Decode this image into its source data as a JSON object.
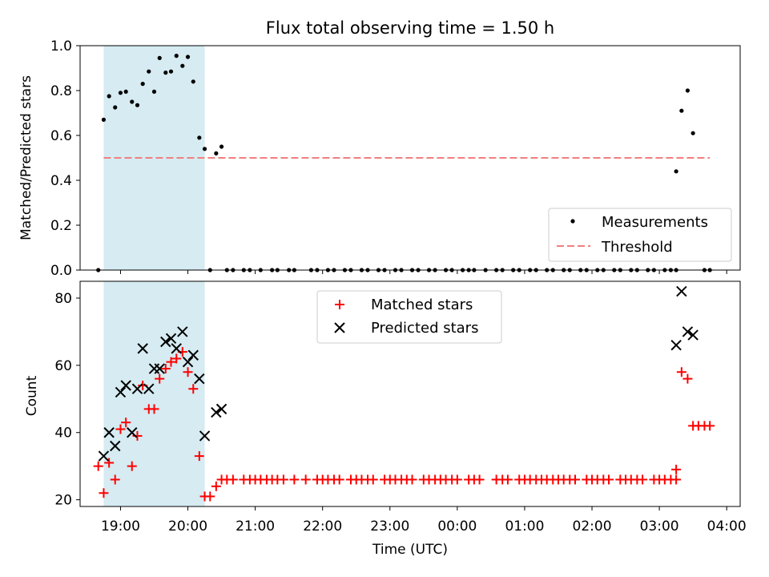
{
  "chart_data": [
    {
      "type": "scatter",
      "title": "Flux total observing time = 1.50 h",
      "xlabel": "",
      "ylabel": "Matched/Predicted stars",
      "xlim": [
        18.4,
        28.2
      ],
      "ylim": [
        0.0,
        1.0
      ],
      "yticks": [
        0.0,
        0.2,
        0.4,
        0.6,
        0.8,
        1.0
      ],
      "ytick_labels": [
        "0.0",
        "0.2",
        "0.4",
        "0.6",
        "0.8",
        "1.0"
      ],
      "legend_location": "lower right",
      "highlight_span": [
        18.75,
        20.25
      ],
      "threshold": {
        "name": "Threshold",
        "value": 0.5,
        "x_range": [
          18.75,
          27.75
        ],
        "color": "#f08080"
      },
      "series": [
        {
          "name": "Measurements",
          "color": "#000000",
          "marker": "dot",
          "x": [
            18.67,
            18.75,
            18.83,
            18.92,
            19.0,
            19.08,
            19.17,
            19.25,
            19.33,
            19.42,
            19.5,
            19.58,
            19.67,
            19.75,
            19.83,
            19.92,
            20.0,
            20.08,
            20.17,
            20.25,
            20.42,
            20.5,
            20.33,
            20.58,
            20.67,
            20.83,
            20.92,
            21.08,
            21.25,
            21.33,
            21.5,
            21.58,
            21.83,
            21.92,
            22.08,
            22.17,
            22.33,
            22.42,
            22.58,
            22.67,
            22.83,
            22.92,
            23.08,
            23.17,
            23.33,
            23.42,
            23.58,
            23.67,
            23.83,
            23.92,
            24.08,
            24.17,
            24.25,
            24.42,
            24.58,
            24.67,
            24.83,
            24.92,
            25.08,
            25.17,
            25.33,
            25.42,
            25.58,
            25.67,
            25.83,
            25.92,
            26.08,
            26.17,
            26.33,
            26.42,
            26.58,
            26.67,
            26.83,
            26.92,
            27.08,
            27.17,
            27.25,
            27.67,
            27.75,
            27.25,
            27.33,
            27.42,
            27.5
          ],
          "y": [
            0.0,
            0.67,
            0.775,
            0.725,
            0.79,
            0.795,
            0.75,
            0.735,
            0.83,
            0.885,
            0.795,
            0.945,
            0.88,
            0.885,
            0.955,
            0.91,
            0.95,
            0.84,
            0.59,
            0.54,
            0.52,
            0.55,
            0,
            0,
            0,
            0,
            0,
            0,
            0,
            0,
            0,
            0,
            0,
            0,
            0,
            0,
            0,
            0,
            0,
            0,
            0,
            0,
            0,
            0,
            0,
            0,
            0,
            0,
            0,
            0,
            0,
            0,
            0,
            0,
            0,
            0,
            0,
            0,
            0,
            0,
            0,
            0,
            0,
            0,
            0,
            0,
            0,
            0,
            0,
            0,
            0,
            0,
            0,
            0,
            0,
            0,
            0,
            0,
            0,
            0.44,
            0.71,
            0.8,
            0.61
          ]
        }
      ]
    },
    {
      "type": "scatter",
      "title": "",
      "xlabel": "Time (UTC)",
      "ylabel": "Count",
      "xlim": [
        18.4,
        28.2
      ],
      "ylim": [
        18,
        85
      ],
      "xticks": [
        19,
        20,
        21,
        22,
        23,
        24,
        25,
        26,
        27,
        28
      ],
      "xtick_labels": [
        "19:00",
        "20:00",
        "21:00",
        "22:00",
        "23:00",
        "00:00",
        "01:00",
        "02:00",
        "03:00",
        "04:00"
      ],
      "yticks": [
        20,
        40,
        60,
        80
      ],
      "ytick_labels": [
        "20",
        "40",
        "60",
        "80"
      ],
      "legend_location": "upper center",
      "highlight_span": [
        18.75,
        20.25
      ],
      "series": [
        {
          "name": "Matched stars",
          "color": "#ff0000",
          "marker": "plus",
          "x": [
            18.67,
            18.75,
            18.83,
            18.92,
            19.0,
            19.08,
            19.17,
            19.25,
            19.33,
            19.42,
            19.5,
            19.58,
            19.67,
            19.75,
            19.83,
            19.92,
            20.0,
            20.08,
            20.17,
            20.25,
            20.33,
            20.42,
            20.5,
            20.58,
            20.67,
            20.83,
            20.92,
            21.0,
            21.08,
            21.17,
            21.25,
            21.33,
            21.42,
            21.58,
            21.75,
            21.92,
            22.0,
            22.08,
            22.17,
            22.25,
            22.42,
            22.5,
            22.58,
            22.67,
            22.75,
            22.92,
            23.0,
            23.08,
            23.17,
            23.25,
            23.33,
            23.5,
            23.58,
            23.67,
            23.75,
            23.83,
            23.92,
            24.0,
            24.17,
            24.25,
            24.33,
            24.58,
            24.67,
            24.75,
            24.92,
            25.0,
            25.08,
            25.17,
            25.25,
            25.33,
            25.42,
            25.5,
            25.58,
            25.67,
            25.75,
            25.92,
            26.0,
            26.08,
            26.17,
            26.25,
            26.42,
            26.5,
            26.58,
            26.67,
            26.75,
            26.92,
            27.0,
            27.08,
            27.17,
            27.25,
            27.25,
            27.33,
            27.42,
            27.5,
            27.58,
            27.67,
            27.75
          ],
          "y": [
            30,
            22,
            31,
            26,
            41,
            43,
            30,
            39,
            54,
            47,
            47,
            56,
            59,
            61,
            62,
            64,
            58,
            53,
            33,
            21,
            21,
            24,
            26,
            26,
            26,
            26,
            26,
            26,
            26,
            26,
            26,
            26,
            26,
            26,
            26,
            26,
            26,
            26,
            26,
            26,
            26,
            26,
            26,
            26,
            26,
            26,
            26,
            26,
            26,
            26,
            26,
            26,
            26,
            26,
            26,
            26,
            26,
            26,
            26,
            26,
            26,
            26,
            26,
            26,
            26,
            26,
            26,
            26,
            26,
            26,
            26,
            26,
            26,
            26,
            26,
            26,
            26,
            26,
            26,
            26,
            26,
            26,
            26,
            26,
            26,
            26,
            26,
            26,
            26,
            26,
            29,
            58,
            56,
            42,
            42,
            42,
            42
          ]
        },
        {
          "name": "Predicted stars",
          "color": "#000000",
          "marker": "x",
          "x": [
            18.75,
            18.83,
            18.92,
            19.0,
            19.08,
            19.17,
            19.25,
            19.33,
            19.42,
            19.5,
            19.58,
            19.67,
            19.75,
            19.83,
            19.92,
            20.0,
            20.08,
            20.17,
            20.25,
            20.42,
            20.5,
            27.25,
            27.33,
            27.42,
            27.5
          ],
          "y": [
            33,
            40,
            36,
            52,
            54,
            40,
            53,
            65,
            53,
            59,
            59,
            67,
            68,
            65,
            70,
            61,
            63,
            56,
            39,
            46,
            47,
            66,
            82,
            70,
            69
          ]
        }
      ]
    }
  ]
}
